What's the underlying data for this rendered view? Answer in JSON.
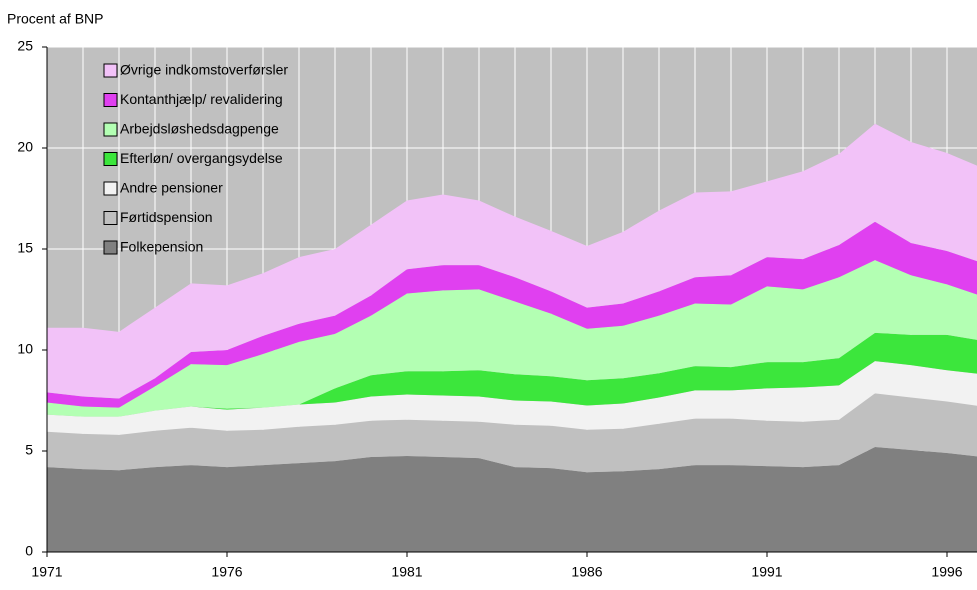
{
  "chart_data": {
    "type": "stacked_area",
    "subtitle": "Procent af BNP",
    "x": [
      1971,
      1972,
      1973,
      1974,
      1975,
      1976,
      1977,
      1978,
      1979,
      1980,
      1981,
      1982,
      1983,
      1984,
      1985,
      1986,
      1987,
      1988,
      1989,
      1990,
      1991,
      1992,
      1993,
      1994,
      1995,
      1996,
      1997
    ],
    "xlim": [
      1971,
      1997
    ],
    "xticks": [
      1971,
      1976,
      1981,
      1986,
      1991,
      1996
    ],
    "ylim": [
      0,
      25
    ],
    "yticks": [
      0,
      5,
      10,
      15,
      20,
      25
    ],
    "grid": true,
    "legend": "upper left",
    "series": [
      {
        "name": "Folkepension",
        "color": "#808080",
        "values": [
          4.2,
          4.1,
          4.05,
          4.2,
          4.3,
          4.2,
          4.3,
          4.4,
          4.5,
          4.7,
          4.75,
          4.7,
          4.65,
          4.2,
          4.15,
          3.95,
          4.0,
          4.1,
          4.3,
          4.3,
          4.25,
          4.2,
          4.3,
          5.2,
          5.05,
          4.9,
          4.7
        ]
      },
      {
        "name": "Førtidspension",
        "color": "#c0c0c0",
        "values": [
          1.75,
          1.75,
          1.75,
          1.8,
          1.85,
          1.8,
          1.75,
          1.8,
          1.8,
          1.8,
          1.8,
          1.8,
          1.8,
          2.1,
          2.1,
          2.1,
          2.1,
          2.25,
          2.3,
          2.3,
          2.25,
          2.25,
          2.25,
          2.65,
          2.6,
          2.55,
          2.5
        ]
      },
      {
        "name": "Andre pensioner",
        "color": "#f2f2f2",
        "values": [
          0.85,
          0.85,
          0.9,
          1.0,
          1.05,
          1.05,
          1.1,
          1.1,
          1.1,
          1.2,
          1.25,
          1.25,
          1.25,
          1.2,
          1.2,
          1.2,
          1.25,
          1.3,
          1.4,
          1.4,
          1.6,
          1.7,
          1.7,
          1.6,
          1.6,
          1.55,
          1.6
        ]
      },
      {
        "name": "Efterløn/  overgangsydelse",
        "color": "#3ce63c",
        "values": [
          0,
          0,
          0,
          0,
          0,
          0.05,
          0,
          0,
          0.7,
          1.05,
          1.15,
          1.2,
          1.3,
          1.3,
          1.25,
          1.25,
          1.25,
          1.2,
          1.2,
          1.15,
          1.3,
          1.25,
          1.35,
          1.4,
          1.5,
          1.75,
          1.65
        ]
      },
      {
        "name": "Arbejdsløshedsdagpenge",
        "color": "#b3ffb3",
        "values": [
          0.6,
          0.5,
          0.45,
          1.2,
          2.1,
          2.15,
          2.65,
          3.1,
          2.7,
          2.95,
          3.85,
          4.0,
          4.0,
          3.6,
          3.1,
          2.55,
          2.6,
          2.85,
          3.1,
          3.1,
          3.75,
          3.6,
          4.0,
          3.6,
          2.95,
          2.5,
          2.2
        ]
      },
      {
        "name": "Kontanthjælp/  revalidering",
        "color": "#e040f0",
        "values": [
          0.5,
          0.5,
          0.45,
          0.4,
          0.6,
          0.75,
          0.9,
          0.9,
          0.9,
          1.0,
          1.2,
          1.25,
          1.2,
          1.2,
          1.1,
          1.05,
          1.1,
          1.2,
          1.3,
          1.45,
          1.45,
          1.5,
          1.6,
          1.9,
          1.6,
          1.65,
          1.65
        ]
      },
      {
        "name": "Øvrige indkomstoverførsler",
        "color": "#f2c2f8",
        "values": [
          3.2,
          3.4,
          3.3,
          3.5,
          3.4,
          3.2,
          3.1,
          3.3,
          3.3,
          3.5,
          3.4,
          3.5,
          3.2,
          3.0,
          3.0,
          3.05,
          3.55,
          4.0,
          4.2,
          4.15,
          3.75,
          4.35,
          4.5,
          4.85,
          5.0,
          4.85,
          4.7
        ]
      }
    ]
  }
}
